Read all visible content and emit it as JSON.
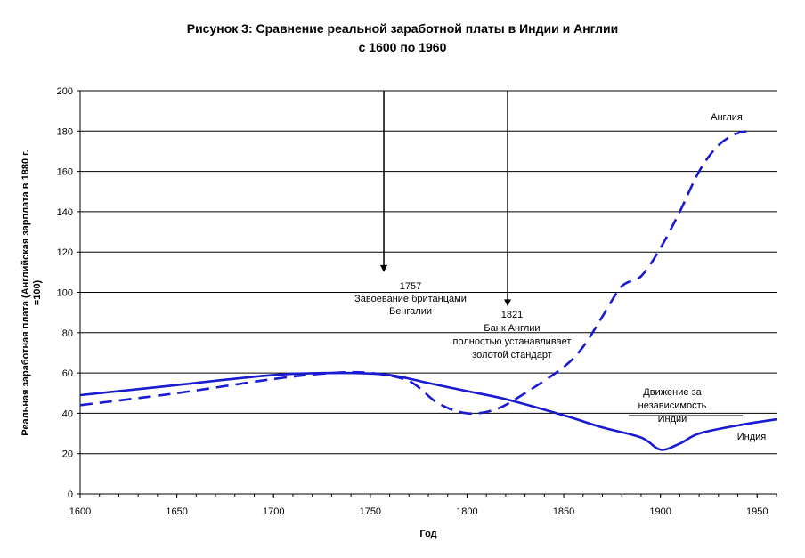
{
  "chart_data": {
    "type": "line",
    "title": [
      "Рисунок 3: Сравнение реальной заработной платы в Индии и Англии",
      "с 1600 по 1960"
    ],
    "xlabel": "Год",
    "ylabel": [
      "Реальная заработная плата (Английская зарплата в 1880 г.",
      "=100)"
    ],
    "xlim": [
      1600,
      1960
    ],
    "ylim": [
      0,
      200
    ],
    "x_ticks": [
      1600,
      1650,
      1700,
      1750,
      1800,
      1850,
      1900,
      1950
    ],
    "y_ticks": [
      0,
      20,
      40,
      60,
      80,
      100,
      120,
      140,
      160,
      180,
      200
    ],
    "grid": "horizontal",
    "colors": {
      "series": "#1a1ad0",
      "axis": "#000000"
    },
    "series": [
      {
        "name": "Англия",
        "style": "dashed",
        "points": [
          [
            1600,
            44
          ],
          [
            1650,
            50
          ],
          [
            1700,
            57
          ],
          [
            1730,
            60
          ],
          [
            1750,
            60
          ],
          [
            1770,
            56
          ],
          [
            1785,
            45
          ],
          [
            1800,
            40
          ],
          [
            1815,
            42
          ],
          [
            1830,
            50
          ],
          [
            1850,
            63
          ],
          [
            1860,
            73
          ],
          [
            1870,
            88
          ],
          [
            1880,
            103
          ],
          [
            1890,
            108
          ],
          [
            1900,
            122
          ],
          [
            1910,
            140
          ],
          [
            1920,
            160
          ],
          [
            1930,
            173
          ],
          [
            1940,
            179
          ],
          [
            1948,
            180
          ]
        ]
      },
      {
        "name": "Индия",
        "style": "solid",
        "points": [
          [
            1600,
            49
          ],
          [
            1650,
            54
          ],
          [
            1700,
            59
          ],
          [
            1735,
            60
          ],
          [
            1760,
            59
          ],
          [
            1780,
            55
          ],
          [
            1800,
            51
          ],
          [
            1820,
            47
          ],
          [
            1850,
            39
          ],
          [
            1870,
            33
          ],
          [
            1890,
            28
          ],
          [
            1900,
            22
          ],
          [
            1910,
            25
          ],
          [
            1920,
            30
          ],
          [
            1940,
            34
          ],
          [
            1960,
            37
          ]
        ]
      }
    ],
    "annotations": [
      {
        "year": 1757,
        "arrow_top": 200,
        "arrow_bottom": 110,
        "lines": [
          "1757",
          "Завоевание британцами",
          "Бенгалии"
        ]
      },
      {
        "year": 1821,
        "arrow_top": 200,
        "arrow_bottom": 93,
        "lines": [
          "1821",
          "Банк Англии",
          "полностью устанавливает",
          "золотой стандарт"
        ]
      },
      {
        "lines": [
          "Движение за",
          "независимость",
          "Индии"
        ]
      }
    ]
  }
}
